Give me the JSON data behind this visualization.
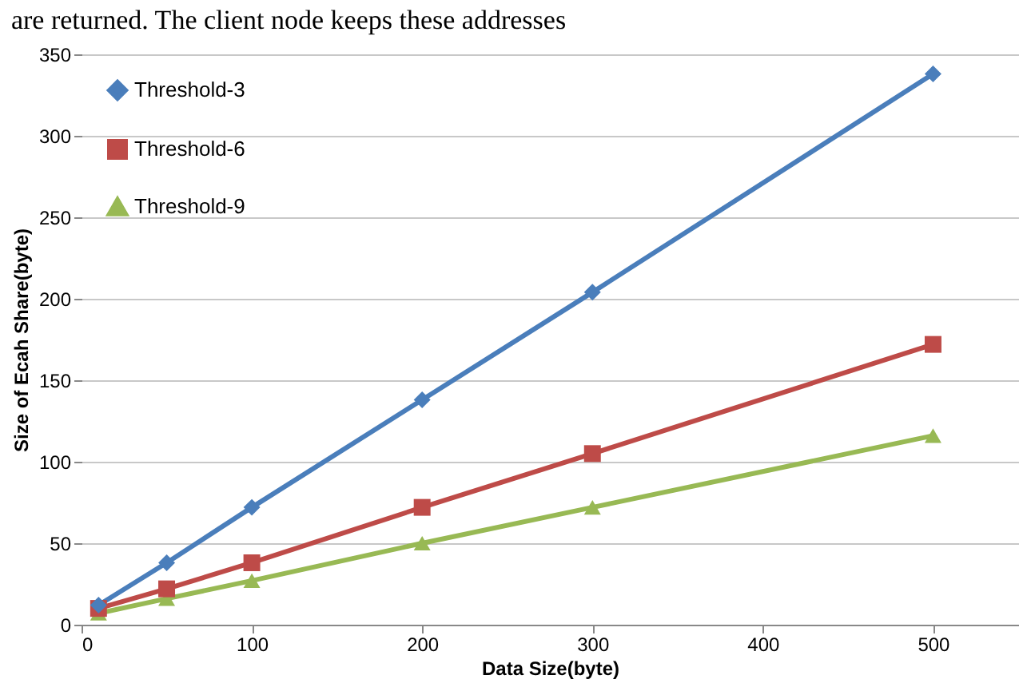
{
  "chart_data": {
    "type": "line",
    "xlabel": "Data Size(byte)",
    "ylabel": "Size of Ecah Share(byte)",
    "annotations": [
      "are returned. The client node keeps these addresses"
    ],
    "x": [
      10,
      50,
      100,
      200,
      300,
      500
    ],
    "series": [
      {
        "name": "Threshold-3",
        "color": "#4a7ebb",
        "marker": "diamond",
        "values": [
          12,
          38,
          72,
          138,
          204,
          338
        ]
      },
      {
        "name": "Threshold-6",
        "color": "#be4b48",
        "marker": "square",
        "values": [
          10,
          22,
          38,
          72,
          105,
          172
        ]
      },
      {
        "name": "Threshold-9",
        "color": "#98b954",
        "marker": "triangle",
        "values": [
          7,
          16,
          27,
          50,
          72,
          116
        ]
      }
    ],
    "xlim": [
      0,
      550
    ],
    "xticks": [
      0,
      100,
      200,
      300,
      400,
      500
    ],
    "ylim": [
      0,
      350
    ],
    "yticks": [
      0,
      50,
      100,
      150,
      200,
      250,
      300,
      350
    ],
    "grid": "y",
    "legend": "top left"
  }
}
